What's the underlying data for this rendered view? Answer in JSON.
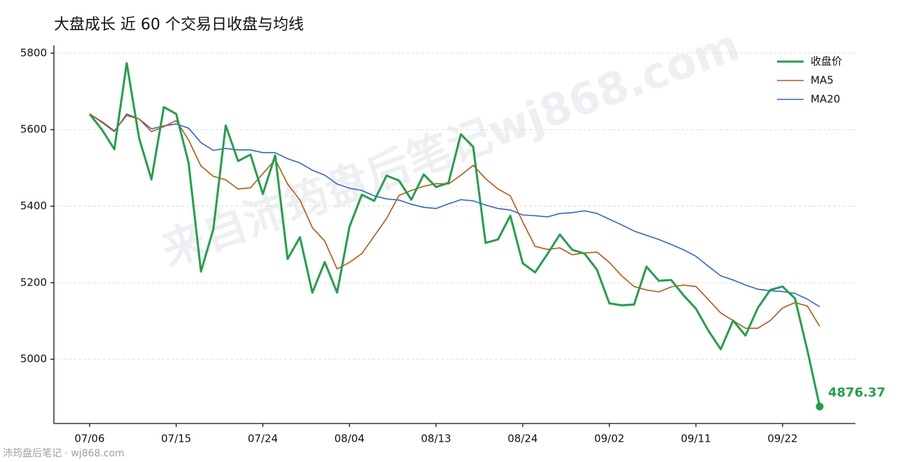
{
  "chart_data": {
    "type": "line",
    "title": "大盘成长 近 60 个交易日收盘与均线",
    "watermark": "来自沛筠盘后笔记wj868.com",
    "footer": "沛筠盘后笔记 · wj868.com",
    "categories": [
      "07/06",
      null,
      null,
      null,
      null,
      null,
      null,
      "07/15",
      null,
      null,
      null,
      null,
      null,
      null,
      "07/24",
      null,
      null,
      null,
      null,
      null,
      null,
      "08/04",
      null,
      null,
      null,
      null,
      null,
      null,
      "08/13",
      null,
      null,
      null,
      null,
      null,
      null,
      "08/24",
      null,
      null,
      null,
      null,
      null,
      null,
      "09/02",
      null,
      null,
      null,
      null,
      null,
      null,
      "09/11",
      null,
      null,
      null,
      null,
      null,
      null,
      "09/22",
      null,
      null,
      null
    ],
    "series": [
      {
        "name": "收盘价",
        "color": "#22a04a",
        "width": 3,
        "values": [
          5641,
          5600,
          5549,
          5774,
          5578,
          5470,
          5659,
          5641,
          5513,
          5229,
          5340,
          5611,
          5518,
          5535,
          5432,
          5533,
          5262,
          5319,
          5174,
          5254,
          5174,
          5346,
          5430,
          5414,
          5480,
          5467,
          5417,
          5483,
          5450,
          5461,
          5588,
          5555,
          5304,
          5313,
          5375,
          5251,
          5227,
          5275,
          5326,
          5286,
          5276,
          5234,
          5146,
          5141,
          5143,
          5242,
          5205,
          5207,
          5167,
          5132,
          5075,
          5026,
          5101,
          5062,
          5134,
          5181,
          5190,
          5159,
          5024,
          4876.37
        ]
      },
      {
        "name": "MA5",
        "color": "#b8560f",
        "width": 1.6,
        "values": [
          5641,
          5621,
          5597,
          5637,
          5628,
          5595,
          5608,
          5624,
          5573,
          5505,
          5478,
          5469,
          5445,
          5448,
          5485,
          5522,
          5458,
          5416,
          5344,
          5309,
          5236,
          5253,
          5276,
          5322,
          5368,
          5428,
          5441,
          5452,
          5459,
          5458,
          5481,
          5507,
          5472,
          5445,
          5427,
          5359,
          5295,
          5287,
          5291,
          5273,
          5278,
          5280,
          5253,
          5218,
          5190,
          5181,
          5176,
          5189,
          5194,
          5190,
          5156,
          5121,
          5101,
          5081,
          5081,
          5101,
          5134,
          5148,
          5139,
          5086
        ]
      },
      {
        "name": "MA20",
        "color": "#2d65d8",
        "width": 1.6,
        "values": [
          5641,
          5619,
          5595,
          5641,
          5628,
          5602,
          5610,
          5615,
          5604,
          5566,
          5546,
          5551,
          5547,
          5547,
          5540,
          5540,
          5524,
          5513,
          5494,
          5481,
          5458,
          5447,
          5441,
          5427,
          5419,
          5416,
          5405,
          5397,
          5394,
          5406,
          5417,
          5414,
          5403,
          5394,
          5390,
          5377,
          5375,
          5372,
          5381,
          5383,
          5388,
          5381,
          5366,
          5351,
          5335,
          5324,
          5313,
          5300,
          5286,
          5269,
          5243,
          5218,
          5207,
          5194,
          5183,
          5179,
          5177,
          5172,
          5157,
          5137
        ]
      }
    ],
    "ylim": [
      4832,
      5820
    ],
    "yticks": [
      5000,
      5200,
      5400,
      5600,
      5800
    ],
    "grid": true,
    "legend": "upper right"
  }
}
